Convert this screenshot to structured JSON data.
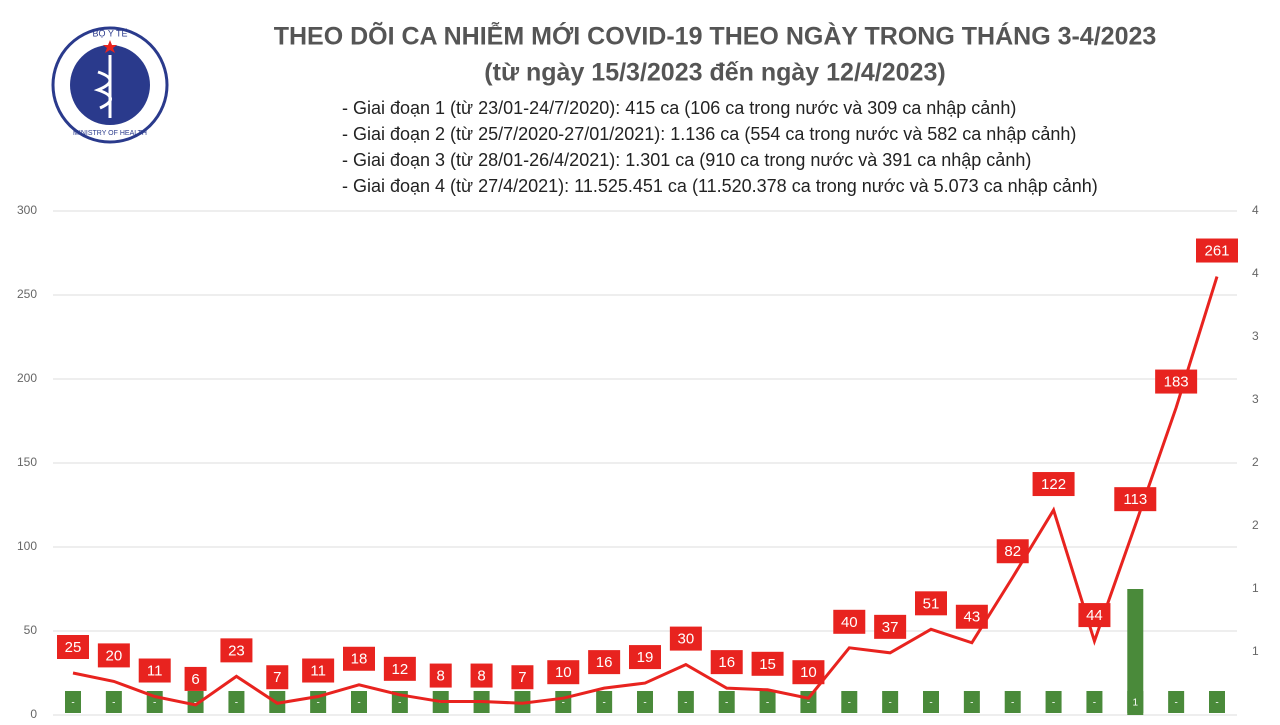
{
  "logo": {
    "top": "BỘ Y TẾ",
    "bottom": "MINISTRY OF HEALTH"
  },
  "chart_data": {
    "type": "combo",
    "title": "THEO DÕI CA NHIỄM MỚI COVID-19 THEO NGÀY TRONG THÁNG 3-4/2023",
    "subtitle": "(từ ngày 15/3/2023 đến ngày 12/4/2023)",
    "notes": [
      "- Giai đoạn 1 (từ 23/01-24/7/2020): 415 ca (106 ca trong nước và 309 ca nhập cảnh)",
      "- Giai đoạn 2 (từ 25/7/2020-27/01/2021): 1.136 ca (554 ca trong nước và 582 ca nhập cảnh)",
      "- Giai đoạn 3 (từ 28/01-26/4/2021): 1.301 ca (910 ca trong nước và 391 ca nhập cảnh)",
      "- Giai đoạn 4 (từ 27/4/2021): 11.525.451 ca (11.520.378 ca trong nước và 5.073 ca nhập cảnh)"
    ],
    "categories": [
      null,
      null,
      null,
      null,
      null,
      null,
      null,
      null,
      null,
      null,
      null,
      null,
      null,
      null,
      null,
      null,
      null,
      null,
      null,
      null,
      null,
      null,
      null,
      null,
      null,
      null,
      null,
      null,
      null
    ],
    "ylim": [
      0,
      300
    ],
    "yticks": [
      0,
      50,
      100,
      150,
      200,
      250,
      300
    ],
    "y2lim": [
      0,
      4
    ],
    "y2ticks": [
      {
        "value": 0.5,
        "label": "1"
      },
      {
        "value": 1,
        "label": "1"
      },
      {
        "value": 1.5,
        "label": "2"
      },
      {
        "value": 2,
        "label": "2"
      },
      {
        "value": 2.5,
        "label": "3"
      },
      {
        "value": 3,
        "label": "3"
      },
      {
        "value": 3.5,
        "label": "4"
      },
      {
        "value": 4,
        "label": "4"
      }
    ],
    "grid": true,
    "series": [
      {
        "type": "bar",
        "axis": "y2",
        "color": "#4a8a3a",
        "values": [
          0,
          0,
          0,
          0,
          0,
          0,
          0,
          0,
          0,
          0,
          0,
          0,
          0,
          0,
          0,
          0,
          0,
          0,
          0,
          0,
          0,
          0,
          0,
          0,
          0,
          0,
          1,
          0,
          0
        ],
        "value_labels": [
          "-",
          "-",
          "-",
          "-",
          "-",
          "-",
          "-",
          "-",
          "-",
          "-",
          "-",
          "-",
          "-",
          "-",
          "-",
          "-",
          "-",
          "-",
          "-",
          "-",
          "-",
          "-",
          "-",
          "-",
          "-",
          "-",
          "1",
          "-",
          "-"
        ]
      },
      {
        "type": "line",
        "color": "#e8231f",
        "values": [
          25,
          20,
          11,
          6,
          23,
          7,
          11,
          18,
          12,
          8,
          8,
          7,
          10,
          16,
          19,
          30,
          16,
          15,
          10,
          40,
          37,
          51,
          43,
          82,
          122,
          44,
          113,
          183,
          261
        ]
      }
    ]
  }
}
